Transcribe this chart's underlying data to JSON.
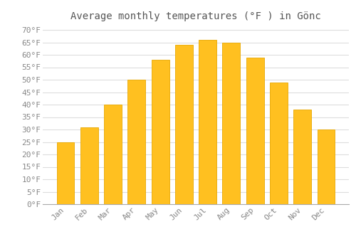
{
  "title": "Average monthly temperatures (°F ) in Gönc",
  "months": [
    "Jan",
    "Feb",
    "Mar",
    "Apr",
    "May",
    "Jun",
    "Jul",
    "Aug",
    "Sep",
    "Oct",
    "Nov",
    "Dec"
  ],
  "values": [
    25,
    31,
    40,
    50,
    58,
    64,
    66,
    65,
    59,
    49,
    38,
    30
  ],
  "bar_color": "#FFC020",
  "bar_edge_color": "#E8A800",
  "background_color": "#FFFFFF",
  "grid_color": "#DDDDDD",
  "yticks": [
    0,
    5,
    10,
    15,
    20,
    25,
    30,
    35,
    40,
    45,
    50,
    55,
    60,
    65,
    70
  ],
  "ylim": [
    0,
    72
  ],
  "title_fontsize": 10,
  "tick_fontsize": 8,
  "tick_font_color": "#888888",
  "title_color": "#555555"
}
